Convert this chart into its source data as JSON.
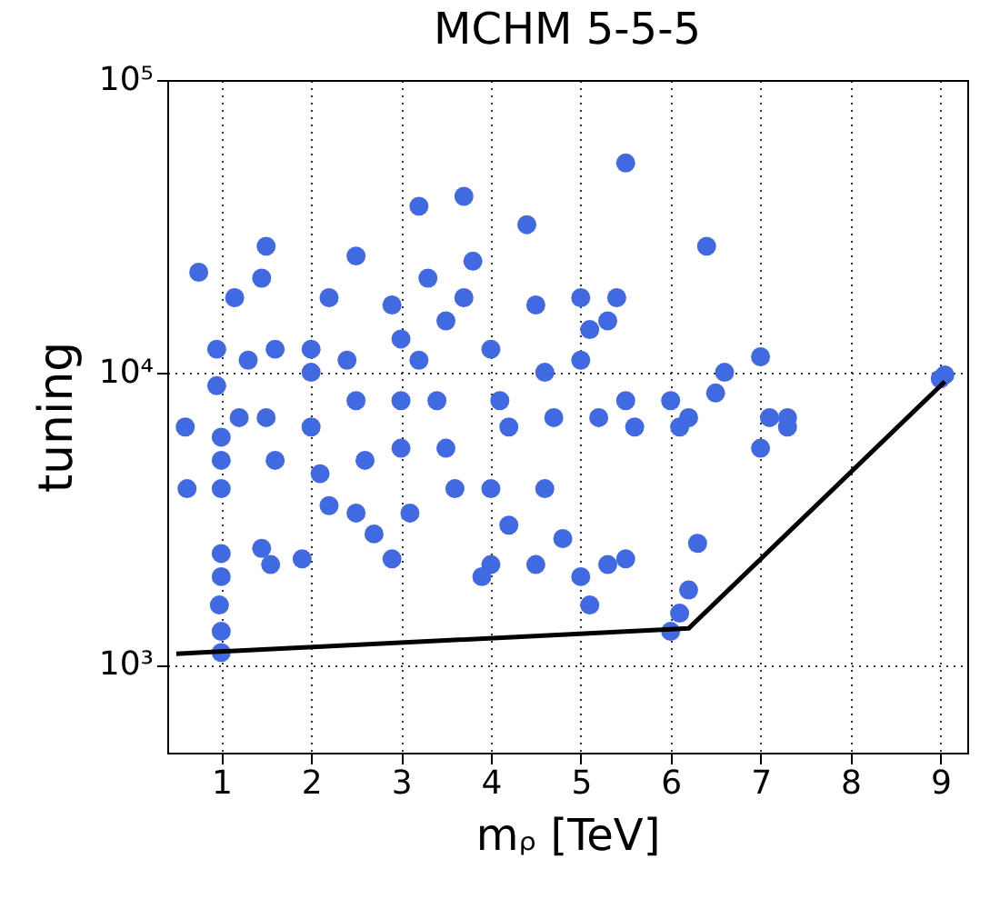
{
  "chart_data": {
    "type": "scatter",
    "title": "MCHM 5-5-5",
    "xlabel": "mᵨ [TeV]",
    "ylabel": "tuning",
    "xlim": [
      0.4,
      9.3
    ],
    "xticks": [
      1,
      2,
      3,
      4,
      5,
      6,
      7,
      8,
      9
    ],
    "ylim": [
      500,
      100000
    ],
    "yticks": [
      {
        "value": 1000,
        "label": "10³"
      },
      {
        "value": 10000,
        "label": "10⁴"
      },
      {
        "value": 100000,
        "label": "10⁵"
      }
    ],
    "log": "y",
    "grid": true,
    "series": [
      {
        "marker": "circle",
        "color": "#4169e1",
        "x": [
          1.0,
          1.0,
          0.98,
          1.0,
          1.0,
          1.0,
          1.0,
          1.0,
          0.95,
          0.95,
          0.75,
          0.6,
          0.62,
          1.15,
          1.3,
          1.2,
          1.5,
          1.45,
          1.6,
          1.5,
          1.6,
          1.45,
          1.55,
          2.2,
          2.0,
          2.0,
          2.1,
          2.2,
          1.9,
          2.0,
          2.5,
          2.5,
          2.6,
          2.5,
          2.7,
          2.4,
          2.9,
          3.0,
          3.0,
          3.0,
          3.1,
          2.9,
          3.2,
          3.2,
          3.5,
          3.4,
          3.5,
          3.6,
          3.3,
          3.7,
          3.8,
          3.7,
          4.0,
          4.1,
          4.2,
          4.0,
          4.0,
          4.2,
          3.9,
          4.4,
          4.5,
          4.6,
          4.7,
          4.6,
          4.8,
          4.5,
          5.0,
          5.0,
          5.1,
          5.2,
          5.0,
          5.1,
          5.3,
          5.5,
          5.4,
          5.5,
          5.6,
          5.5,
          5.3,
          6.0,
          6.1,
          6.1,
          6.0,
          6.2,
          6.3,
          6.2,
          6.4,
          6.5,
          6.6,
          7.0,
          7.1,
          7.3,
          7.0,
          7.3,
          9.0,
          9.05
        ],
        "values": [
          1100,
          1300,
          1600,
          2000,
          2400,
          4000,
          5000,
          6000,
          9000,
          12000,
          22000,
          6500,
          4000,
          18000,
          11000,
          7000,
          27000,
          21000,
          12000,
          7000,
          5000,
          2500,
          2200,
          18000,
          10000,
          6500,
          4500,
          3500,
          2300,
          12000,
          25000,
          8000,
          5000,
          3300,
          2800,
          11000,
          17000,
          13000,
          8000,
          5500,
          3300,
          2300,
          37000,
          11000,
          15000,
          8000,
          5500,
          4000,
          21000,
          40000,
          24000,
          18000,
          12000,
          8000,
          6500,
          4000,
          2200,
          3000,
          2000,
          32000,
          17000,
          10000,
          7000,
          4000,
          2700,
          2200,
          18000,
          11000,
          14000,
          7000,
          2000,
          1600,
          2200,
          52000,
          18000,
          8000,
          6500,
          2300,
          15000,
          8000,
          6500,
          1500,
          1300,
          1800,
          2600,
          7000,
          27000,
          8500,
          10000,
          11300,
          7000,
          6500,
          5500,
          7000,
          9500,
          9800
        ]
      },
      {
        "type": "line",
        "marker": "none",
        "color": "#000000",
        "x": [
          0.5,
          6.2,
          9.05
        ],
        "values": [
          1090,
          1330,
          9300
        ]
      }
    ]
  }
}
